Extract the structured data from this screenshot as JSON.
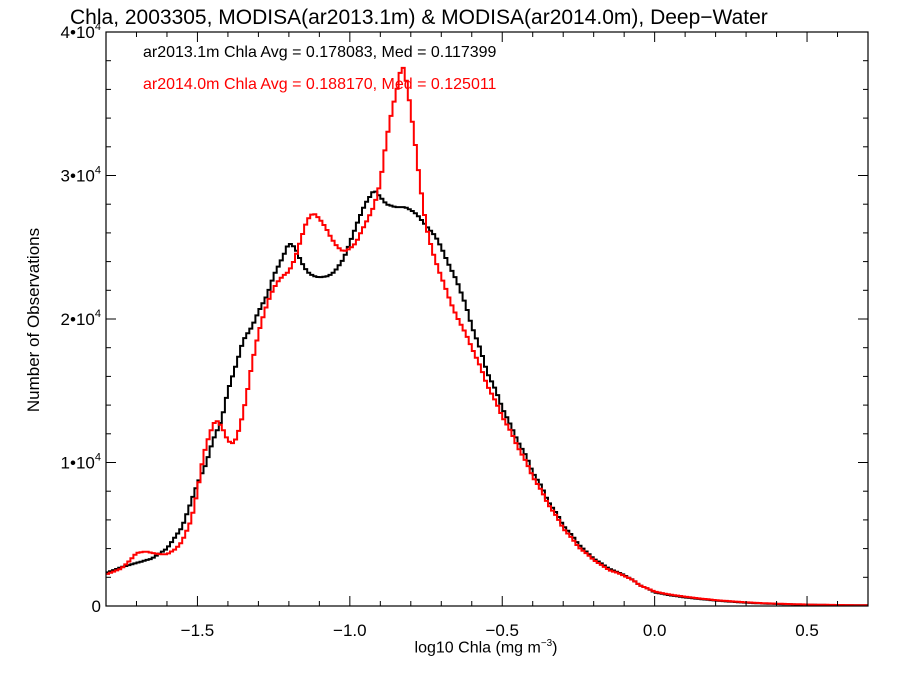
{
  "chart_data": {
    "type": "line",
    "title": "Chla, 2003305, MODISA(ar2013.1m) & MODISA(ar2014.0m), Deep−Water",
    "xlabel_base": "log10 Chla (mg m",
    "xlabel_sup": "−3",
    "xlabel_close": ")",
    "ylabel": "Number of Observations",
    "xlim": [
      -1.8,
      0.7
    ],
    "ylim": [
      0,
      40000
    ],
    "x_ticks": [
      {
        "value": -1.5,
        "label": "−1.5"
      },
      {
        "value": -1.0,
        "label": "−1.0"
      },
      {
        "value": -0.5,
        "label": "−0.5"
      },
      {
        "value": 0.0,
        "label": "0.0"
      },
      {
        "value": 0.5,
        "label": "0.5"
      }
    ],
    "y_ticks": [
      {
        "value": 0,
        "label": "0",
        "exp": ""
      },
      {
        "value": 10000,
        "label": "1•10",
        "exp": "4"
      },
      {
        "value": 20000,
        "label": "2•10",
        "exp": "4"
      },
      {
        "value": 30000,
        "label": "3•10",
        "exp": "4"
      },
      {
        "value": 40000,
        "label": "4•10",
        "exp": "4"
      }
    ],
    "stats": {
      "s1": "ar2013.1m Chla Avg = 0.178083, Med = 0.117399",
      "s2": "ar2014.0m Chla Avg = 0.188170, Med = 0.125011"
    },
    "series": [
      {
        "color": "#000000",
        "points": [
          [
            -1.8,
            2300
          ],
          [
            -1.75,
            2700
          ],
          [
            -1.7,
            3000
          ],
          [
            -1.65,
            3300
          ],
          [
            -1.6,
            4000
          ],
          [
            -1.55,
            5500
          ],
          [
            -1.5,
            8500
          ],
          [
            -1.47,
            10000
          ],
          [
            -1.45,
            11500
          ],
          [
            -1.42,
            13000
          ],
          [
            -1.4,
            15000
          ],
          [
            -1.37,
            17000
          ],
          [
            -1.35,
            18500
          ],
          [
            -1.32,
            19500
          ],
          [
            -1.3,
            20500
          ],
          [
            -1.27,
            21700
          ],
          [
            -1.25,
            23000
          ],
          [
            -1.22,
            24300
          ],
          [
            -1.2,
            25300
          ],
          [
            -1.18,
            25000
          ],
          [
            -1.16,
            24000
          ],
          [
            -1.14,
            23300
          ],
          [
            -1.12,
            23000
          ],
          [
            -1.1,
            22900
          ],
          [
            -1.07,
            23000
          ],
          [
            -1.05,
            23300
          ],
          [
            -1.02,
            24200
          ],
          [
            -1.0,
            25300
          ],
          [
            -0.97,
            27000
          ],
          [
            -0.95,
            28000
          ],
          [
            -0.92,
            29000
          ],
          [
            -0.9,
            28500
          ],
          [
            -0.88,
            28000
          ],
          [
            -0.85,
            27800
          ],
          [
            -0.82,
            27800
          ],
          [
            -0.8,
            27600
          ],
          [
            -0.78,
            27300
          ],
          [
            -0.75,
            26500
          ],
          [
            -0.72,
            25800
          ],
          [
            -0.7,
            25000
          ],
          [
            -0.68,
            24000
          ],
          [
            -0.65,
            22700
          ],
          [
            -0.62,
            21000
          ],
          [
            -0.6,
            19500
          ],
          [
            -0.57,
            17800
          ],
          [
            -0.55,
            16300
          ],
          [
            -0.52,
            15000
          ],
          [
            -0.5,
            13800
          ],
          [
            -0.47,
            12500
          ],
          [
            -0.45,
            11500
          ],
          [
            -0.42,
            10400
          ],
          [
            -0.4,
            9300
          ],
          [
            -0.37,
            8300
          ],
          [
            -0.35,
            7300
          ],
          [
            -0.32,
            6400
          ],
          [
            -0.3,
            5600
          ],
          [
            -0.27,
            4900
          ],
          [
            -0.25,
            4300
          ],
          [
            -0.22,
            3700
          ],
          [
            -0.2,
            3300
          ],
          [
            -0.17,
            2900
          ],
          [
            -0.15,
            2600
          ],
          [
            -0.12,
            2350
          ],
          [
            -0.1,
            2150
          ],
          [
            -0.07,
            1800
          ],
          [
            -0.05,
            1450
          ],
          [
            -0.02,
            1200
          ],
          [
            0.0,
            950
          ],
          [
            0.05,
            750
          ],
          [
            0.1,
            600
          ],
          [
            0.15,
            480
          ],
          [
            0.2,
            380
          ],
          [
            0.25,
            300
          ],
          [
            0.3,
            230
          ],
          [
            0.35,
            180
          ],
          [
            0.4,
            140
          ],
          [
            0.5,
            90
          ],
          [
            0.6,
            60
          ],
          [
            0.7,
            50
          ]
        ]
      },
      {
        "color": "#ff0000",
        "points": [
          [
            -1.8,
            2200
          ],
          [
            -1.75,
            2600
          ],
          [
            -1.72,
            3200
          ],
          [
            -1.7,
            3700
          ],
          [
            -1.67,
            3800
          ],
          [
            -1.65,
            3700
          ],
          [
            -1.62,
            3600
          ],
          [
            -1.6,
            3600
          ],
          [
            -1.57,
            4000
          ],
          [
            -1.55,
            4500
          ],
          [
            -1.52,
            6000
          ],
          [
            -1.5,
            8000
          ],
          [
            -1.48,
            10500
          ],
          [
            -1.46,
            12000
          ],
          [
            -1.44,
            13000
          ],
          [
            -1.42,
            12500
          ],
          [
            -1.4,
            11500
          ],
          [
            -1.38,
            11300
          ],
          [
            -1.36,
            12500
          ],
          [
            -1.34,
            14500
          ],
          [
            -1.32,
            17000
          ],
          [
            -1.3,
            19000
          ],
          [
            -1.28,
            20500
          ],
          [
            -1.26,
            21700
          ],
          [
            -1.24,
            22500
          ],
          [
            -1.22,
            23000
          ],
          [
            -1.2,
            23300
          ],
          [
            -1.18,
            24200
          ],
          [
            -1.16,
            25600
          ],
          [
            -1.14,
            26900
          ],
          [
            -1.12,
            27400
          ],
          [
            -1.1,
            27000
          ],
          [
            -1.08,
            26400
          ],
          [
            -1.06,
            25600
          ],
          [
            -1.04,
            25000
          ],
          [
            -1.02,
            24700
          ],
          [
            -1.0,
            24900
          ],
          [
            -0.98,
            25300
          ],
          [
            -0.96,
            26200
          ],
          [
            -0.94,
            27000
          ],
          [
            -0.92,
            27900
          ],
          [
            -0.9,
            29500
          ],
          [
            -0.88,
            32500
          ],
          [
            -0.86,
            34700
          ],
          [
            -0.84,
            36500
          ],
          [
            -0.83,
            37800
          ],
          [
            -0.82,
            37200
          ],
          [
            -0.81,
            36000
          ],
          [
            -0.79,
            33000
          ],
          [
            -0.77,
            29500
          ],
          [
            -0.75,
            26500
          ],
          [
            -0.73,
            24800
          ],
          [
            -0.71,
            23500
          ],
          [
            -0.69,
            22400
          ],
          [
            -0.67,
            21200
          ],
          [
            -0.65,
            20200
          ],
          [
            -0.62,
            19000
          ],
          [
            -0.6,
            18000
          ],
          [
            -0.57,
            16600
          ],
          [
            -0.55,
            15400
          ],
          [
            -0.52,
            14200
          ],
          [
            -0.5,
            13200
          ],
          [
            -0.47,
            12100
          ],
          [
            -0.45,
            11100
          ],
          [
            -0.42,
            10000
          ],
          [
            -0.4,
            9000
          ],
          [
            -0.37,
            8000
          ],
          [
            -0.35,
            7100
          ],
          [
            -0.32,
            6200
          ],
          [
            -0.3,
            5400
          ],
          [
            -0.27,
            4700
          ],
          [
            -0.25,
            4100
          ],
          [
            -0.22,
            3600
          ],
          [
            -0.2,
            3200
          ],
          [
            -0.17,
            2800
          ],
          [
            -0.15,
            2500
          ],
          [
            -0.12,
            2300
          ],
          [
            -0.1,
            2100
          ],
          [
            -0.07,
            1800
          ],
          [
            -0.05,
            1450
          ],
          [
            -0.02,
            1200
          ],
          [
            0.0,
            1000
          ],
          [
            0.05,
            800
          ],
          [
            0.1,
            650
          ],
          [
            0.15,
            520
          ],
          [
            0.2,
            410
          ],
          [
            0.25,
            330
          ],
          [
            0.3,
            260
          ],
          [
            0.35,
            200
          ],
          [
            0.4,
            160
          ],
          [
            0.5,
            100
          ],
          [
            0.6,
            70
          ],
          [
            0.7,
            50
          ]
        ]
      }
    ]
  }
}
